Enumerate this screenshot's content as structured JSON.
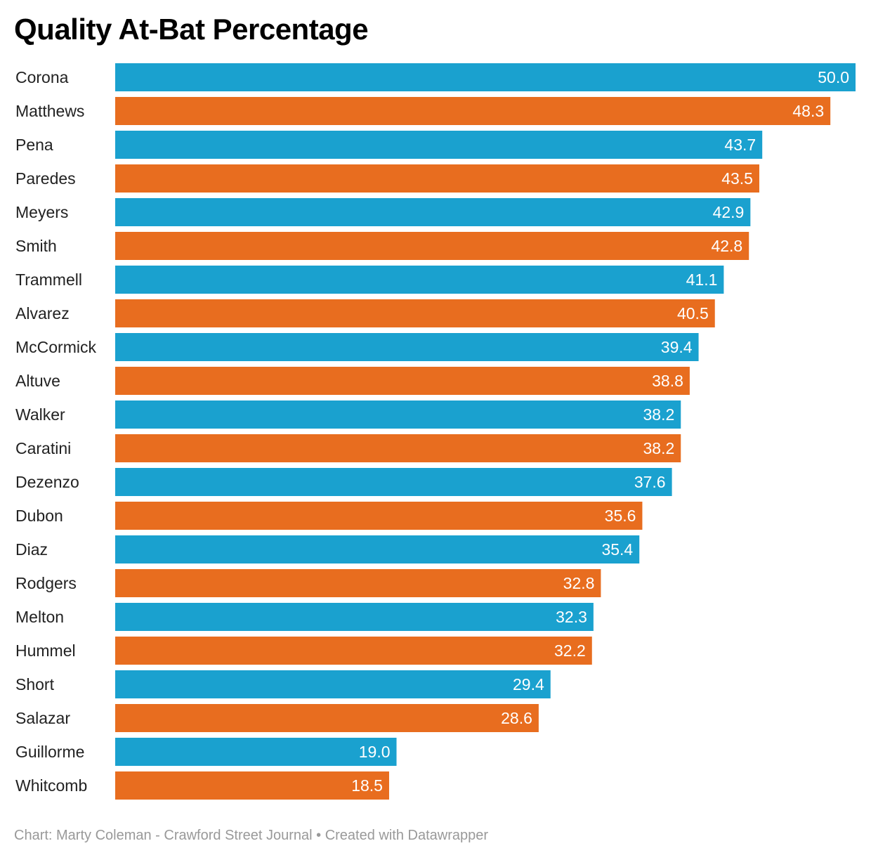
{
  "chart_data": {
    "type": "bar",
    "orientation": "horizontal",
    "title": "Quality At-Bat Percentage",
    "categories": [
      "Corona",
      "Matthews",
      "Pena",
      "Paredes",
      "Meyers",
      "Smith",
      "Trammell",
      "Alvarez",
      "McCormick",
      "Altuve",
      "Walker",
      "Caratini",
      "Dezenzo",
      "Dubon",
      "Diaz",
      "Rodgers",
      "Melton",
      "Hummel",
      "Short",
      "Salazar",
      "Guillorme",
      "Whitcomb"
    ],
    "values": [
      50.0,
      48.3,
      43.7,
      43.5,
      42.9,
      42.8,
      41.1,
      40.5,
      39.4,
      38.8,
      38.2,
      38.2,
      37.6,
      35.6,
      35.4,
      32.8,
      32.3,
      32.2,
      29.4,
      28.6,
      19.0,
      18.5
    ],
    "value_labels": [
      "50.0",
      "48.3",
      "43.7",
      "43.5",
      "42.9",
      "42.8",
      "41.1",
      "40.5",
      "39.4",
      "38.8",
      "38.2",
      "38.2",
      "37.6",
      "35.6",
      "35.4",
      "32.8",
      "32.3",
      "32.2",
      "29.4",
      "28.6",
      "19.0",
      "18.5"
    ],
    "xlim": [
      0,
      50
    ],
    "xlabel": "",
    "ylabel": "",
    "grid": false,
    "colors": [
      "#1aa1cf",
      "#e86d1f"
    ]
  },
  "footer": {
    "text": "Chart: Marty Coleman - Crawford Street Journal • Created with Datawrapper"
  }
}
